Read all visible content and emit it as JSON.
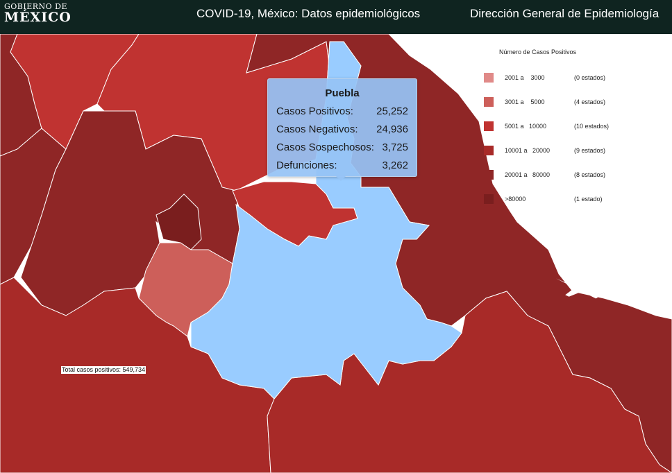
{
  "header": {
    "logo_line1": "GOBIERNO DE",
    "logo_line2": "MÉXICO",
    "title": "COVID-19, México: Datos epidemiológicos",
    "agency": "Dirección General de Epidemiología"
  },
  "legend": {
    "title": "Número de Casos Positivos",
    "items": [
      {
        "range": "2001 a    3000",
        "count": "(0 estados)",
        "color": "#e08a88"
      },
      {
        "range": "3001 a    5000",
        "count": "(4 estados)",
        "color": "#cd5f5a"
      },
      {
        "range": "5001 a   10000",
        "count": "(10 estados)",
        "color": "#c03331"
      },
      {
        "range": "10001 a   20000",
        "count": "(9 estados)",
        "color": "#a82a28"
      },
      {
        "range": "20001 a   80000",
        "count": "(8 estados)",
        "color": "#8f2626"
      },
      {
        "range": ">80000",
        "count": "(1 estado)",
        "color": "#7a1e1e"
      }
    ]
  },
  "tooltip": {
    "state": "Puebla",
    "rows": [
      {
        "label": "Casos Positivos:",
        "value": "25,252"
      },
      {
        "label": "Casos Negativos:",
        "value": "24,936"
      },
      {
        "label": "Casos Sospechosos:",
        "value": "3,725"
      },
      {
        "label": "Defunciones:",
        "value": "3,262"
      }
    ]
  },
  "total_text": "Total casos positivos: 549,734",
  "colors": {
    "header_bg": "#0f2420",
    "highlight": "#99ccff",
    "border": "#ffffff"
  },
  "map_regions": [
    {
      "name": "region-west-top-left",
      "tier": "20001 a 80000",
      "color": "#8f2626"
    },
    {
      "name": "region-north-center",
      "tier": "5001 a 10000",
      "color": "#c03331"
    },
    {
      "name": "region-hidalgo",
      "tier": "5001 a 10000",
      "color": "#c03331"
    },
    {
      "name": "region-mexico-state",
      "tier": "20001 a 80000",
      "color": "#8f2626"
    },
    {
      "name": "region-cdmx",
      "tier": ">80000",
      "color": "#7a1e1e"
    },
    {
      "name": "region-morelos",
      "tier": "3001 a 5000",
      "color": "#cd5f5a"
    },
    {
      "name": "region-tlaxcala",
      "tier": "5001 a 10000",
      "color": "#c03331"
    },
    {
      "name": "region-puebla",
      "tier": "highlighted",
      "color": "#99ccff"
    },
    {
      "name": "region-veracruz",
      "tier": "20001 a 80000",
      "color": "#8f2626"
    },
    {
      "name": "region-guerrero",
      "tier": "10001 a 20000",
      "color": "#a82a28"
    },
    {
      "name": "region-oaxaca",
      "tier": "10001 a 20000",
      "color": "#a82a28"
    }
  ]
}
